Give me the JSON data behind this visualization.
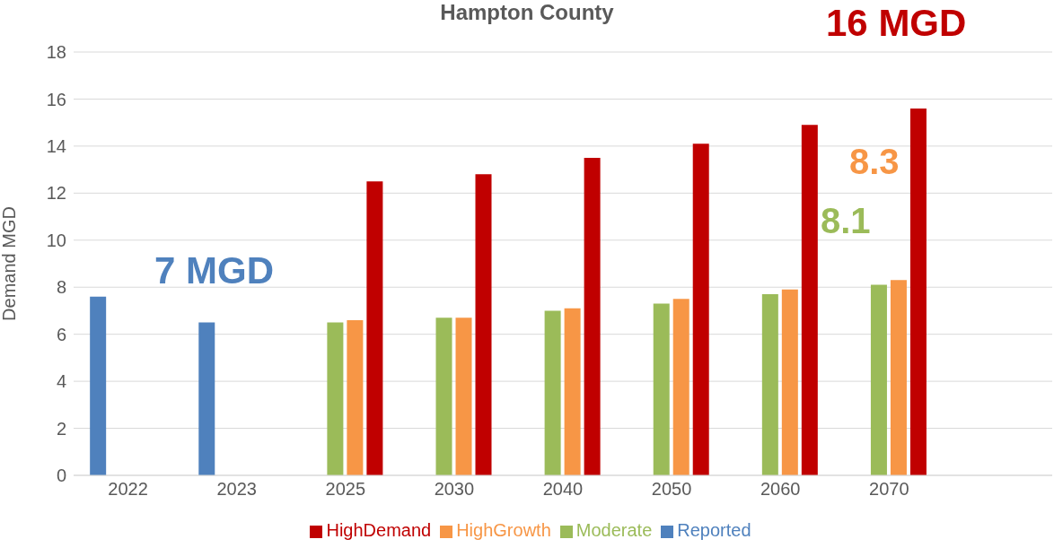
{
  "chart_data": {
    "type": "bar",
    "title": "Hampton County",
    "ylabel": "Demand MGD",
    "categories": [
      "2022",
      "2023",
      "2025",
      "2030",
      "2040",
      "2050",
      "2060",
      "2070",
      null
    ],
    "series": [
      {
        "name": "Reported",
        "color": "#4f81bd",
        "values": [
          7.6,
          6.5,
          null,
          null,
          null,
          null,
          null,
          null,
          null
        ]
      },
      {
        "name": "Moderate",
        "color": "#9bbb59",
        "values": [
          null,
          null,
          6.5,
          6.7,
          7.0,
          7.3,
          7.7,
          8.1,
          null
        ]
      },
      {
        "name": "HighGrowth",
        "color": "#f79646",
        "values": [
          null,
          null,
          6.6,
          6.7,
          7.1,
          7.5,
          7.9,
          8.3,
          null
        ]
      },
      {
        "name": "HighDemand",
        "color": "#c00000",
        "values": [
          null,
          null,
          12.5,
          12.8,
          13.5,
          14.1,
          14.9,
          15.6,
          null
        ]
      }
    ],
    "ylim": [
      0,
      18
    ],
    "yticks": [
      0,
      2,
      4,
      6,
      8,
      10,
      12,
      14,
      16,
      18
    ],
    "grid": "y",
    "legend": "bottom",
    "annotations": [
      "7 MGD",
      "16 MGD",
      "8.3",
      "8.1"
    ]
  }
}
